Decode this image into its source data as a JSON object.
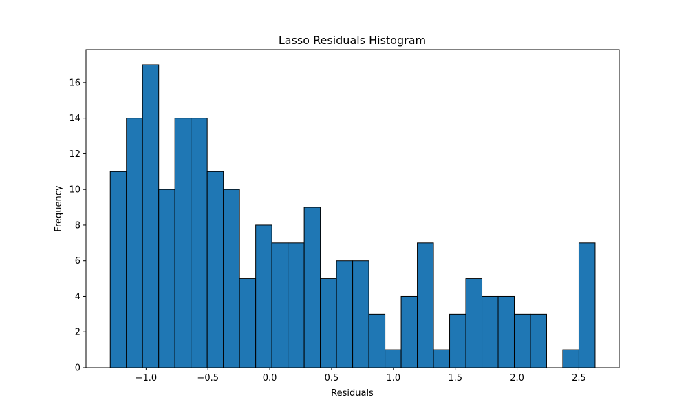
{
  "chart_data": {
    "type": "bar",
    "title": "Lasso Residuals Histogram",
    "xlabel": "Residuals",
    "ylabel": "Frequency",
    "bin_start": -1.29,
    "bin_width": 0.1307,
    "counts": [
      11,
      14,
      17,
      10,
      14,
      14,
      11,
      10,
      5,
      8,
      7,
      7,
      9,
      5,
      6,
      6,
      3,
      1,
      4,
      7,
      1,
      3,
      5,
      4,
      4,
      3,
      3,
      0,
      1,
      7
    ],
    "xlim": [
      -1.486,
      2.826
    ],
    "ylim": [
      0,
      17.85
    ],
    "xticks": [
      -1.0,
      -0.5,
      0.0,
      0.5,
      1.0,
      1.5,
      2.0,
      2.5
    ],
    "xtick_labels": [
      "−1.0",
      "−0.5",
      "0.0",
      "0.5",
      "1.0",
      "1.5",
      "2.0",
      "2.5"
    ],
    "yticks": [
      0,
      2,
      4,
      6,
      8,
      10,
      12,
      14,
      16
    ],
    "ytick_labels": [
      "0",
      "2",
      "4",
      "6",
      "8",
      "10",
      "12",
      "14",
      "16"
    ],
    "grid": false,
    "colors": {
      "bar_fill": "#1f77b4",
      "bar_edge": "#000000"
    }
  }
}
